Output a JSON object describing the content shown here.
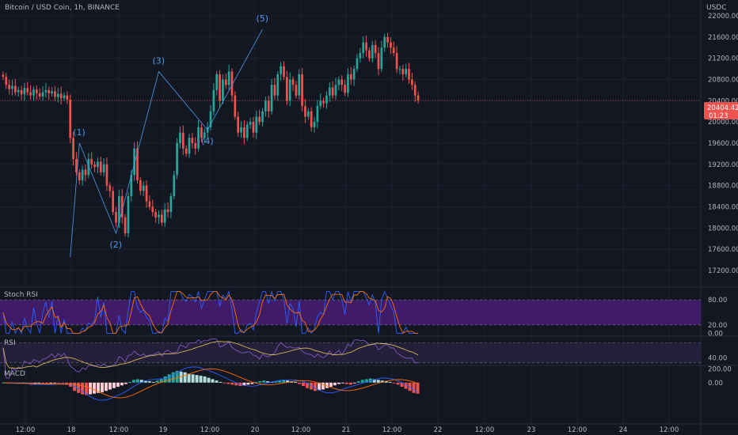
{
  "header": {
    "symbol_title": "Bitcoin / USD Coin, 1h, BINANCE"
  },
  "price_axis": {
    "currency": "USDC",
    "last_price": "20404.42",
    "countdown": "01:23"
  },
  "chart_data": {
    "type": "candlestick",
    "main": {
      "ylim": [
        16900,
        22300
      ],
      "yticks": [
        17200,
        17600,
        18000,
        18400,
        18800,
        19200,
        19600,
        20000,
        20400,
        20800,
        21200,
        21600,
        22000
      ],
      "last_price_line": 20404.42,
      "colors": {
        "up": "#26a69a",
        "down": "#ef5350",
        "wave": "#4f9be8"
      },
      "candles_description": "approximate hourly closes",
      "closes": [
        20850,
        20700,
        20620,
        20680,
        20560,
        20600,
        20520,
        20640,
        20560,
        20500,
        20610,
        20540,
        20480,
        20560,
        20600,
        20540,
        20580,
        20470,
        20530,
        20450,
        20500,
        20420,
        19700,
        19300,
        19050,
        18900,
        19100,
        19000,
        19300,
        19200,
        19150,
        19250,
        19050,
        19200,
        18800,
        18700,
        18300,
        18100,
        18600,
        18200,
        17900,
        18600,
        19000,
        19500,
        18900,
        18700,
        18800,
        18500,
        18400,
        18300,
        18200,
        18250,
        18100,
        18350,
        18300,
        18600,
        19000,
        19600,
        19800,
        19500,
        19400,
        19700,
        19600,
        19500,
        19900,
        19700,
        19800,
        19900,
        20200,
        20600,
        20900,
        20400,
        20800,
        20700,
        20950,
        20500,
        20100,
        19800,
        19900,
        19700,
        19950,
        20000,
        19800,
        20100,
        20000,
        20200,
        20400,
        20200,
        20700,
        20500,
        20900,
        21050,
        20850,
        20400,
        20800,
        20700,
        20500,
        20900,
        20300,
        20100,
        20200,
        19900,
        20000,
        20300,
        20400,
        20350,
        20500,
        20650,
        20500,
        20700,
        20800,
        20700,
        20550,
        20900,
        20800,
        21000,
        21200,
        21300,
        21500,
        21350,
        21200,
        21450,
        21300,
        21000,
        21400,
        21600,
        21500,
        21400,
        21300,
        21000,
        21000,
        20900,
        21000,
        20800,
        20700,
        20500,
        20404.42
      ],
      "elliott_waves": [
        {
          "label": "(1)",
          "x_index": 25,
          "price": 19600
        },
        {
          "label": "(2)",
          "x_index": 37,
          "price": 17900
        },
        {
          "label": "(3)",
          "x_index": 51,
          "price": 20950
        },
        {
          "label": "(4)",
          "x_index": 67,
          "price": 19850
        },
        {
          "label": "(5)",
          "x_index": 85,
          "price": 21750
        }
      ]
    },
    "x_tick_labels": [
      "12:00",
      "18",
      "12:00",
      "19",
      "12:00",
      "20",
      "12:00",
      "21",
      "12:00",
      "22",
      "12:00",
      "23",
      "12:00",
      "24",
      "12:00"
    ],
    "panes": [
      {
        "name": "Stoch RSI",
        "ylim": [
          -5,
          105
        ],
        "yticks": [
          "80.00",
          "20.00",
          "0.00"
        ],
        "band": [
          20,
          80
        ],
        "band_color": "#4b1d7a"
      },
      {
        "name": "RSI",
        "ylim": [
          25,
          80
        ],
        "yticks": [
          "40.00"
        ],
        "band": [
          30,
          70
        ],
        "band_color": "#2a2340"
      },
      {
        "name": "MACD",
        "ylim": [
          -600,
          250
        ],
        "yticks": [
          "200.00",
          "0.00"
        ]
      }
    ],
    "macd_histogram": [
      0,
      -5,
      -10,
      -15,
      -10,
      -5,
      -20,
      -30,
      -20,
      -10,
      -15,
      -20,
      -10,
      -5,
      -5,
      -10,
      -30,
      -60,
      -120,
      -150,
      -170,
      -180,
      -170,
      -160,
      -150,
      -140,
      -120,
      -100,
      -80,
      -60,
      -40,
      -20,
      10,
      40,
      50,
      40,
      30,
      20,
      10,
      30,
      60,
      90,
      120,
      150,
      170,
      160,
      150,
      130,
      120,
      110,
      100,
      90,
      70,
      50,
      30,
      10,
      -10,
      -20,
      -30,
      -40,
      -50,
      -40,
      -30,
      -20,
      10,
      20,
      30,
      20,
      10,
      20,
      30,
      40,
      30,
      20,
      10,
      -20,
      -50,
      -80,
      -100,
      -120,
      -110,
      -100,
      -80,
      -60,
      -40,
      -20,
      -10,
      -20,
      -30,
      -10,
      20,
      40,
      50,
      60,
      50,
      40,
      30,
      20,
      10,
      -10,
      -30,
      -60,
      -90,
      -120,
      -150,
      -160
    ]
  }
}
